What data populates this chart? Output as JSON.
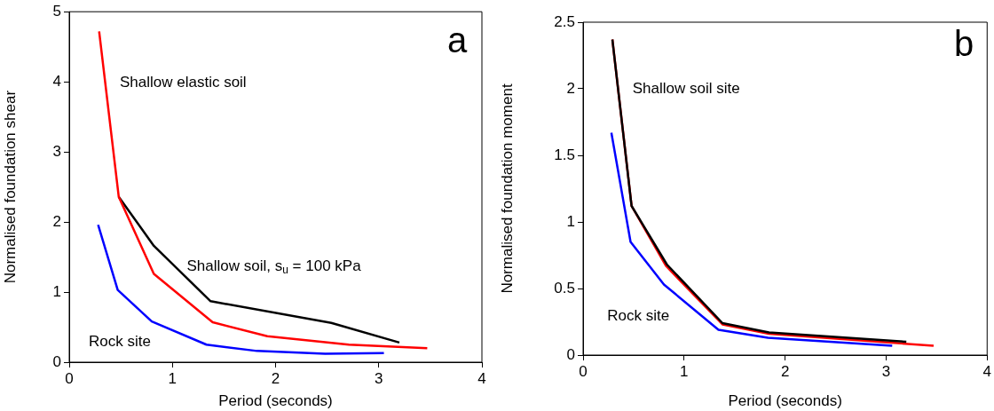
{
  "chart_data": [
    {
      "type": "line",
      "xlabel": "Period (seconds)",
      "ylabel": "Normalised foundation shear",
      "xlim": [
        0,
        4
      ],
      "xticks": [
        0,
        1,
        2,
        3,
        4
      ],
      "ylim": [
        0,
        5
      ],
      "yticks": [
        0,
        1,
        2,
        3,
        4,
        5
      ],
      "grid": false,
      "legend": false,
      "marker": "none",
      "line_style": "solid",
      "series": [
        {
          "color": "#ff0000",
          "x": [
            0.29,
            0.48,
            0.82,
            1.39,
            1.92,
            2.71,
            3.47
          ],
          "values": [
            4.72,
            2.36,
            1.26,
            0.57,
            0.37,
            0.25,
            0.2
          ]
        },
        {
          "color": "#000000",
          "x": [
            0.48,
            0.82,
            1.37,
            2.54,
            3.2
          ],
          "values": [
            2.36,
            1.66,
            0.87,
            0.56,
            0.28
          ]
        },
        {
          "color": "#0000ff",
          "x": [
            0.28,
            0.47,
            0.8,
            1.33,
            1.82,
            2.48,
            3.05
          ],
          "values": [
            1.96,
            1.03,
            0.58,
            0.25,
            0.16,
            0.12,
            0.13
          ]
        }
      ],
      "annotations": [
        "Shallow elastic soil",
        "Shallow soil, s$_{u}$ = 100 kPa",
        "Rock site",
        "a"
      ]
    },
    {
      "type": "line",
      "xlabel": "Period (seconds)",
      "ylabel": "Normalised foundation moment",
      "xlim": [
        0,
        4
      ],
      "xticks": [
        0,
        1,
        2,
        3,
        4
      ],
      "ylim": [
        0,
        2.5
      ],
      "yticks": [
        0,
        0.5,
        1,
        1.5,
        2,
        2.5
      ],
      "grid": false,
      "legend": false,
      "marker": "none",
      "line_style": "solid",
      "series": [
        {
          "color": "#000000",
          "x": [
            0.29,
            0.48,
            0.83,
            1.38,
            1.84,
            3.2
          ],
          "values": [
            2.37,
            1.12,
            0.68,
            0.24,
            0.17,
            0.1
          ]
        },
        {
          "color": "#ff0000",
          "x": [
            0.29,
            0.48,
            0.82,
            1.38,
            1.84,
            3.47
          ],
          "values": [
            2.37,
            1.12,
            0.67,
            0.23,
            0.16,
            0.07
          ]
        },
        {
          "color": "#0000ff",
          "x": [
            0.28,
            0.47,
            0.8,
            1.34,
            1.83,
            3.06
          ],
          "values": [
            1.67,
            0.85,
            0.53,
            0.19,
            0.13,
            0.07
          ]
        }
      ],
      "annotations": [
        "Shallow soil site",
        "Rock site",
        "b"
      ]
    }
  ]
}
